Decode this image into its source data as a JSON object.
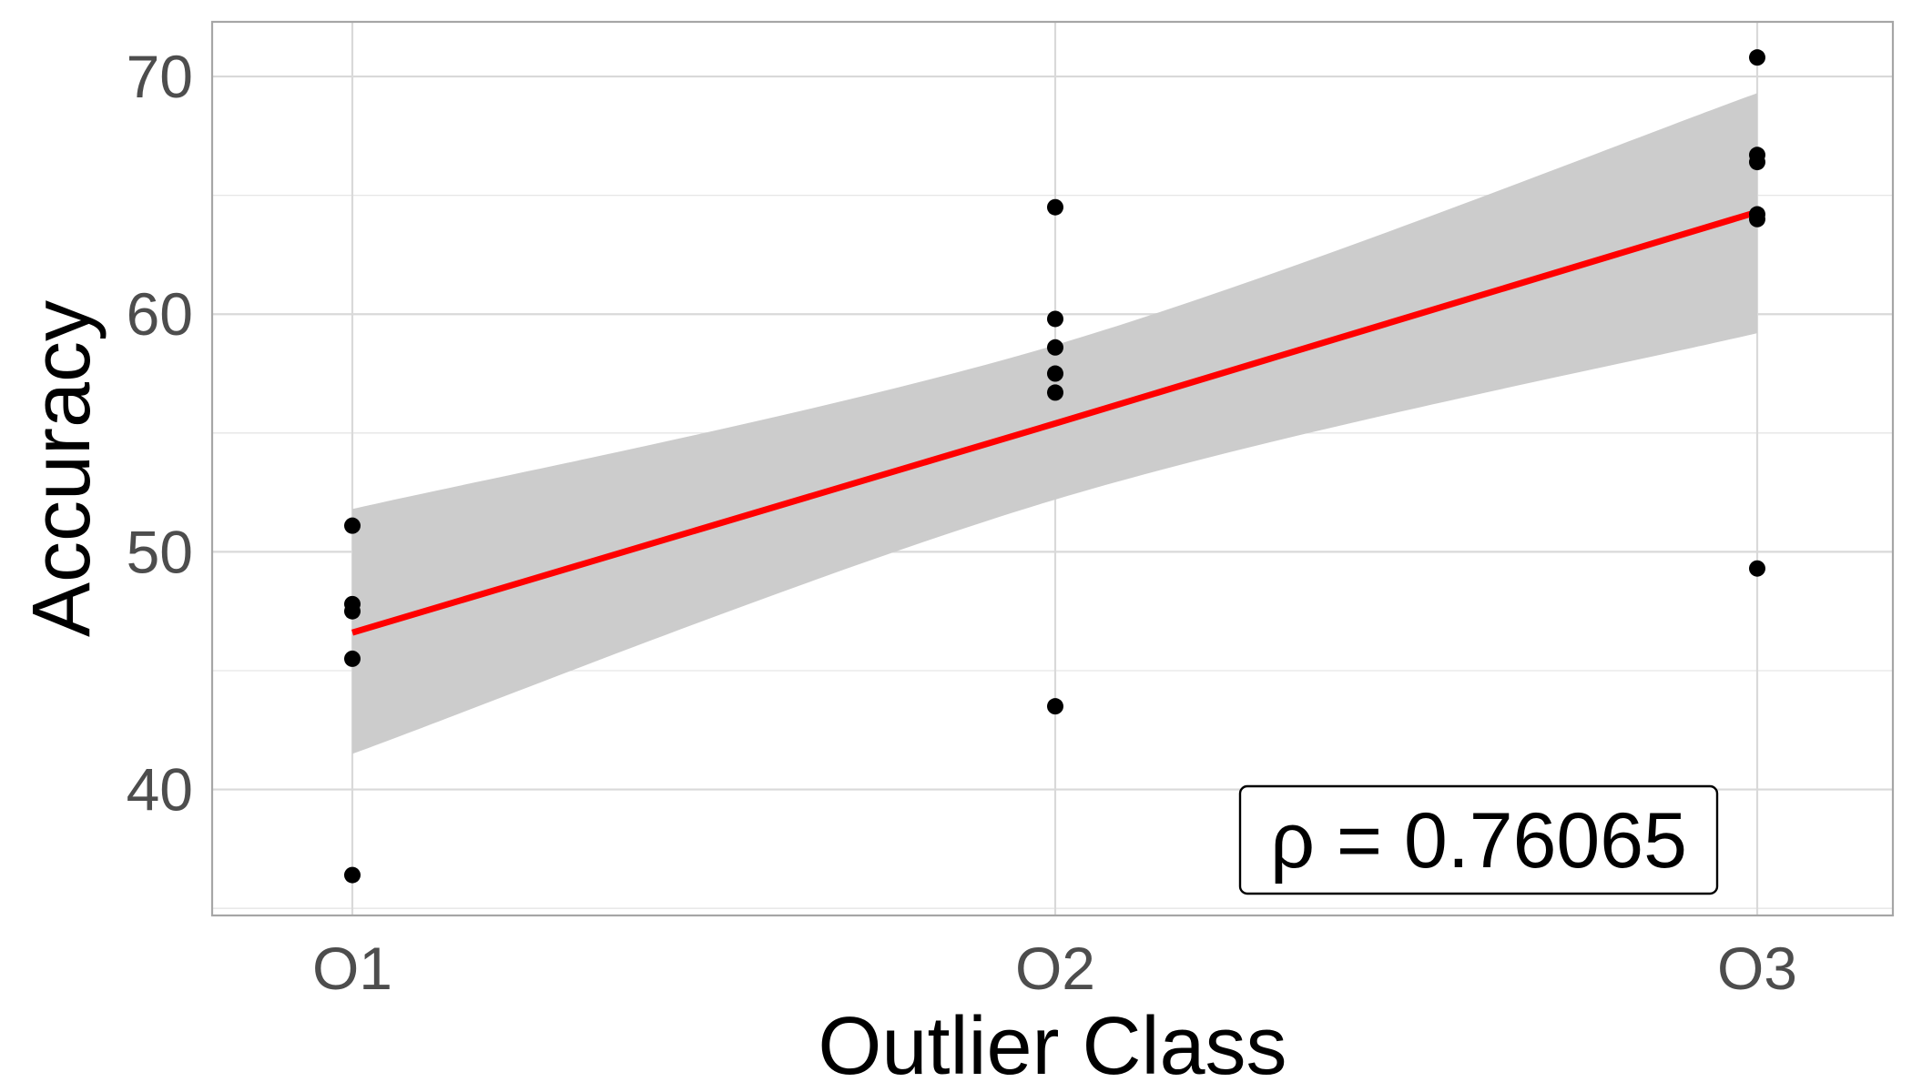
{
  "chart_data": {
    "type": "scatter",
    "xlabel": "Outlier Class",
    "ylabel": "Accuracy",
    "categories": [
      "O1",
      "O2",
      "O3"
    ],
    "ylim": [
      34.7,
      72.3
    ],
    "y_ticks": [
      "40",
      "50",
      "60",
      "70"
    ],
    "grid": true,
    "series": [
      {
        "points": [
          {
            "x": "O1",
            "y": 51.1
          },
          {
            "x": "O1",
            "y": 47.8
          },
          {
            "x": "O1",
            "y": 47.5
          },
          {
            "x": "O1",
            "y": 45.5
          },
          {
            "x": "O1",
            "y": 36.4
          },
          {
            "x": "O2",
            "y": 64.5
          },
          {
            "x": "O2",
            "y": 59.8
          },
          {
            "x": "O2",
            "y": 58.6
          },
          {
            "x": "O2",
            "y": 57.5
          },
          {
            "x": "O2",
            "y": 56.7
          },
          {
            "x": "O2",
            "y": 43.5
          },
          {
            "x": "O3",
            "y": 70.8
          },
          {
            "x": "O3",
            "y": 66.7
          },
          {
            "x": "O3",
            "y": 66.4
          },
          {
            "x": "O3",
            "y": 64.2
          },
          {
            "x": "O3",
            "y": 64.0
          },
          {
            "x": "O3",
            "y": 49.3
          }
        ]
      }
    ],
    "fit_line": {
      "color": "#ff0000",
      "values": [
        {
          "x": "O1",
          "y": 46.6
        },
        {
          "x": "O2",
          "y": 55.4
        },
        {
          "x": "O3",
          "y": 64.3
        }
      ]
    },
    "confidence_band": {
      "color": "#cccccc",
      "upper": [
        {
          "x": "O1",
          "y": 51.8
        },
        {
          "x": "O2",
          "y": 58.7
        },
        {
          "x": "O3",
          "y": 69.3
        }
      ],
      "lower": [
        {
          "x": "O1",
          "y": 41.5
        },
        {
          "x": "O2",
          "y": 52.2
        },
        {
          "x": "O3",
          "y": 59.2
        }
      ]
    },
    "annotation": {
      "text": "ρ = 0.76065",
      "placement": "bottom-right"
    }
  }
}
